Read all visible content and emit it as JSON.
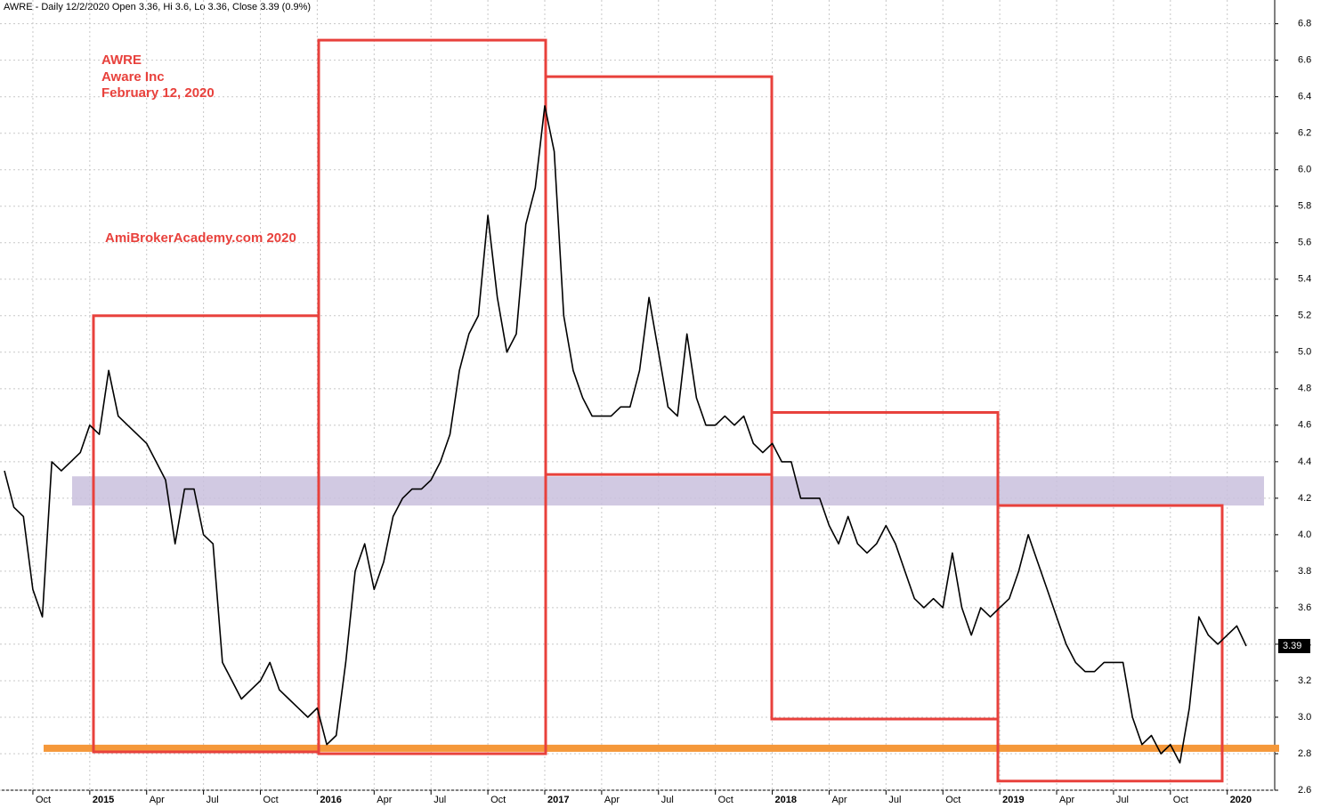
{
  "chart_data": {
    "type": "line",
    "title": "AWRE - Daily 12/2/2020 Open 3.36, Hi 3.6, Lo 3.36, Close 3.39 (0.9%)",
    "annotations": [
      "AWRE",
      "Aware Inc",
      "February 12, 2020",
      "AmiBrokerAcademy.com  2020"
    ],
    "categories": [
      null,
      null,
      null,
      "Oct",
      null,
      null,
      null,
      null,
      null,
      "2015",
      null,
      null,
      null,
      null,
      null,
      "Apr",
      null,
      null,
      null,
      null,
      null,
      "Jul",
      null,
      null,
      null,
      null,
      null,
      "Oct",
      null,
      null,
      null,
      null,
      null,
      "2016",
      null,
      null,
      null,
      null,
      null,
      "Apr",
      null,
      null,
      null,
      null,
      null,
      "Jul",
      null,
      null,
      null,
      null,
      null,
      "Oct",
      null,
      null,
      null,
      null,
      null,
      "2017",
      null,
      null,
      null,
      null,
      null,
      "Apr",
      null,
      null,
      null,
      null,
      null,
      "Jul",
      null,
      null,
      null,
      null,
      null,
      "Oct",
      null,
      null,
      null,
      null,
      null,
      "2018",
      null,
      null,
      null,
      null,
      null,
      "Apr",
      null,
      null,
      null,
      null,
      null,
      "Jul",
      null,
      null,
      null,
      null,
      null,
      "Oct",
      null,
      null,
      null,
      null,
      null,
      "2019",
      null,
      null,
      null,
      null,
      null,
      "Apr",
      null,
      null,
      null,
      null,
      null,
      "Jul",
      null,
      null,
      null,
      null,
      null,
      "Oct",
      null,
      null,
      null,
      null,
      null,
      "2020",
      null,
      null
    ],
    "series": [
      {
        "name": "AWRE",
        "color": "#000000",
        "values": [
          4.35,
          4.15,
          4.1,
          3.7,
          3.55,
          4.4,
          4.35,
          4.4,
          4.45,
          4.6,
          4.55,
          4.9,
          4.65,
          4.6,
          4.55,
          4.5,
          4.4,
          4.3,
          3.95,
          4.25,
          4.25,
          4.0,
          3.95,
          3.3,
          3.2,
          3.1,
          3.15,
          3.2,
          3.3,
          3.15,
          3.1,
          3.05,
          3.0,
          3.05,
          2.85,
          2.9,
          3.3,
          3.8,
          3.95,
          3.7,
          3.85,
          4.1,
          4.2,
          4.25,
          4.25,
          4.3,
          4.4,
          4.55,
          4.9,
          5.1,
          5.2,
          5.75,
          5.3,
          5.0,
          5.1,
          5.7,
          5.9,
          6.35,
          6.1,
          5.2,
          4.9,
          4.75,
          4.65,
          4.65,
          4.65,
          4.7,
          4.7,
          4.9,
          5.3,
          5.0,
          4.7,
          4.65,
          5.1,
          4.75,
          4.6,
          4.6,
          4.65,
          4.6,
          4.65,
          4.5,
          4.45,
          4.5,
          4.4,
          4.4,
          4.2,
          4.2,
          4.2,
          4.05,
          3.95,
          4.1,
          3.95,
          3.9,
          3.95,
          4.05,
          3.95,
          3.8,
          3.65,
          3.6,
          3.65,
          3.6,
          3.9,
          3.6,
          3.45,
          3.6,
          3.55,
          3.6,
          3.65,
          3.8,
          4.0,
          3.85,
          3.7,
          3.55,
          3.4,
          3.3,
          3.25,
          3.25,
          3.3,
          3.3,
          3.3,
          3.0,
          2.85,
          2.9,
          2.8,
          2.85,
          2.75,
          3.05,
          3.55,
          3.45,
          3.4,
          3.45,
          3.5,
          3.39
        ]
      }
    ],
    "ylim": [
      2.6,
      6.93
    ],
    "yticks": [
      2.6,
      2.8,
      {
        "value": 3,
        "label": "3.0"
      },
      3.2,
      3.4,
      3.6,
      3.8,
      {
        "value": 4,
        "label": "4.0"
      },
      4.2,
      4.4,
      4.6,
      4.8,
      {
        "value": 5,
        "label": "5.0"
      },
      5.2,
      5.4,
      5.6,
      5.8,
      {
        "value": 6,
        "label": "6.0"
      },
      6.2,
      6.4,
      6.6,
      6.8
    ],
    "grid": true,
    "boxes": [
      {
        "low": 2.81,
        "high": 5.2
      },
      {
        "low": 2.8,
        "high": 6.71
      },
      {
        "low": 4.33,
        "high": 6.51
      },
      {
        "low": 2.99,
        "high": 4.67
      },
      {
        "low": 2.65,
        "high": 4.16
      }
    ],
    "band": {
      "low": 4.16,
      "high": 4.32,
      "color": "#c9c0dd"
    },
    "support": {
      "value": 2.83,
      "color": "#f5983a"
    },
    "box_color": "#e8413c"
  }
}
